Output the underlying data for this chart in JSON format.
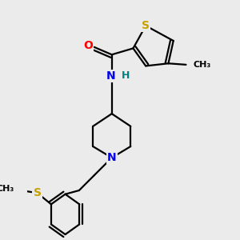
{
  "background_color": "#ebebeb",
  "atom_colors": {
    "S": "#c8a000",
    "N": "#0000ee",
    "O": "#ff0000",
    "C": "#000000",
    "H": "#008080"
  },
  "bond_color": "#000000",
  "bond_width": 1.6,
  "font_size_atom": 10,
  "font_size_methyl": 8,
  "font_size_H": 9
}
